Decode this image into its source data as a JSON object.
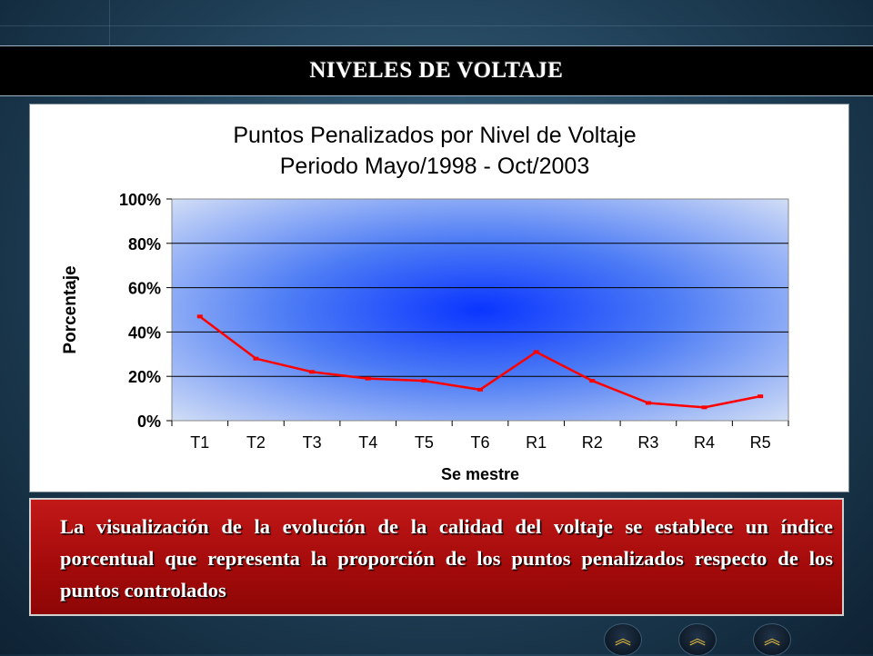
{
  "slide": {
    "title": "NIVELES DE VOLTAJE",
    "body_text": "La visualización de la evolución de la calidad del voltaje se establece un índice porcentual que representa la proporción de los puntos penalizados respecto de los puntos controlados"
  },
  "nav_icons": [
    "nav-chevron-icon",
    "nav-chevron-icon",
    "nav-chevron-icon"
  ],
  "chart_data": {
    "type": "line",
    "title": [
      "Puntos Penalizados por Nivel de Voltaje",
      "Periodo Mayo/1998 - Oct/2003"
    ],
    "xlabel": "Se mestre",
    "ylabel": "Porcentaje",
    "categories": [
      "T1",
      "T2",
      "T3",
      "T4",
      "T5",
      "T6",
      "R1",
      "R2",
      "R3",
      "R4",
      "R5"
    ],
    "series": [
      {
        "values": [
          0.47,
          0.28,
          0.22,
          0.19,
          0.18,
          0.14,
          0.31,
          0.18,
          0.08,
          0.06,
          0.11
        ],
        "color": "#ff0000"
      }
    ],
    "ylim": [
      0,
      1
    ],
    "yticks": [
      0,
      0.2,
      0.4,
      0.6,
      0.8,
      1.0
    ],
    "ytick_labels": [
      "0%",
      "20%",
      "40%",
      "60%",
      "80%",
      "100%"
    ],
    "grid": true,
    "plot_background": "#5a8cf0",
    "legend": "none"
  }
}
